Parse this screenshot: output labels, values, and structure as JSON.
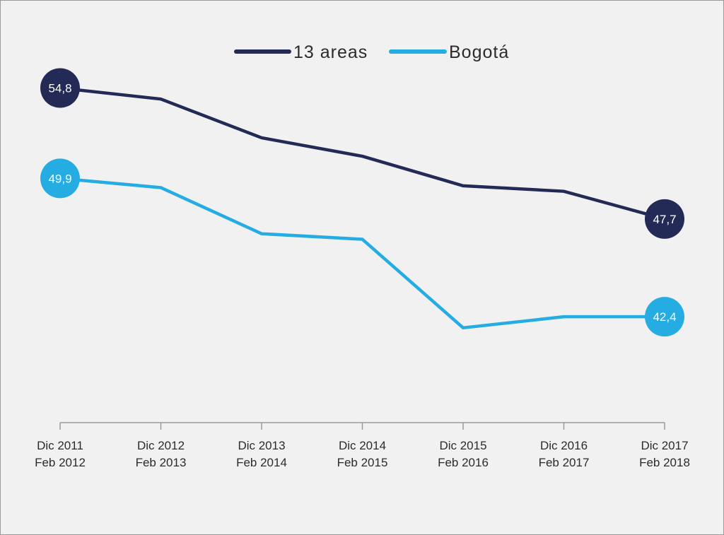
{
  "chart_data": {
    "type": "line",
    "title": "",
    "xlabel": "",
    "ylabel": "",
    "grid": false,
    "legend_position": "top-center",
    "categories": [
      [
        "Dic 2011",
        "Feb 2012"
      ],
      [
        "Dic 2012",
        "Feb 2013"
      ],
      [
        "Dic 2013",
        "Feb 2014"
      ],
      [
        "Dic 2014",
        "Feb 2015"
      ],
      [
        "Dic 2015",
        "Feb 2016"
      ],
      [
        "Dic 2016",
        "Feb 2017"
      ],
      [
        "Dic 2017",
        "Feb 2018"
      ]
    ],
    "ylim": [
      38,
      58
    ],
    "series": [
      {
        "name": "13 areas",
        "color": "#222a55",
        "values": [
          54.8,
          54.2,
          52.1,
          51.1,
          49.5,
          49.2,
          47.7
        ],
        "labels": [
          "54,8",
          "",
          "",
          "",
          "",
          "",
          "47,7"
        ]
      },
      {
        "name": "Bogotá",
        "color": "#24ace3",
        "values": [
          49.9,
          49.4,
          46.9,
          46.6,
          41.8,
          42.4,
          42.4
        ],
        "labels": [
          "49,9",
          "",
          "",
          "",
          "",
          "",
          "42,4"
        ]
      }
    ]
  }
}
